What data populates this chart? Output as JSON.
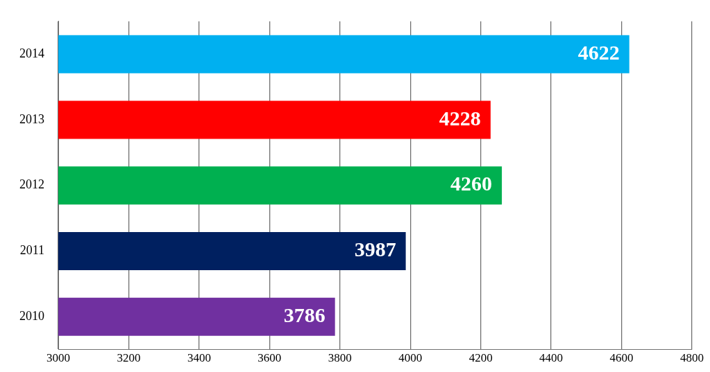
{
  "chart_data": {
    "type": "bar",
    "orientation": "horizontal",
    "categories": [
      "2014",
      "2013",
      "2012",
      "2011",
      "2010"
    ],
    "values": [
      4622,
      4228,
      4260,
      3987,
      3786
    ],
    "colors": [
      "#00b0f0",
      "#ff0000",
      "#00b050",
      "#002060",
      "#7030a0"
    ],
    "xlim": [
      3000,
      4800
    ],
    "xticks": [
      3000,
      3200,
      3400,
      3600,
      3800,
      4000,
      4200,
      4400,
      4600,
      4800
    ],
    "grid": "x",
    "legend": false,
    "data_labels": true
  }
}
